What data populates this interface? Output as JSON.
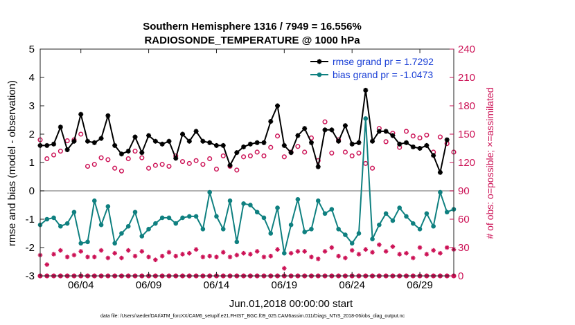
{
  "chart_data": {
    "type": "line",
    "title": [
      "Southern Hemisphere 1316 / 7949 = 16.556%",
      "RADIOSONDE_TEMPERATURE @ 1000 hPa"
    ],
    "xlabel": "Jun.01,2018 00:00:00 start",
    "ylabel": "rmse and bias (model - observation)",
    "ylabel_right": "# of obs: o=possible; ×=assimilated",
    "footnote": "data file: /Users/raeder/DAI/ATM_forcXX/CAM6_setup/f.e21.FHIST_BGC.f09_025.CAM6assim.011/Diags_NTrS_2018-06/obs_diag_output.nc",
    "xlim": [
      0,
      30.5
    ],
    "ylim": [
      -3,
      5
    ],
    "ylim_right": [
      0,
      240
    ],
    "x_ticks": [
      3,
      8,
      13,
      18,
      23,
      28
    ],
    "x_tick_labels": [
      "06/04",
      "06/09",
      "06/14",
      "06/19",
      "06/24",
      "06/29"
    ],
    "y_ticks": [
      -3,
      -2,
      -1,
      0,
      1,
      2,
      3,
      4,
      5
    ],
    "y_ticks_right": [
      0,
      30,
      60,
      90,
      120,
      150,
      180,
      210,
      240
    ],
    "zero_line": true,
    "legend_position": "top-right",
    "colors": {
      "rmse": "#000000",
      "bias": "#0f8080",
      "possible": "#cc1155",
      "assimilated": "#cc1155",
      "zero": "#999999"
    },
    "series": [
      {
        "name": "rmse grand pr = 1.7292",
        "axis": "left",
        "marker": "asterisk",
        "x": [
          0,
          0.5,
          1,
          1.5,
          2,
          2.5,
          3,
          3.5,
          4,
          4.5,
          5,
          5.5,
          6,
          6.5,
          7,
          7.5,
          8,
          8.5,
          9,
          9.5,
          10,
          10.5,
          11,
          11.5,
          12,
          12.5,
          13,
          13.5,
          14,
          14.5,
          15,
          15.5,
          16,
          16.5,
          17,
          17.5,
          18,
          18.5,
          19,
          19.5,
          20,
          20.5,
          21,
          21.5,
          22,
          22.5,
          23,
          23.5,
          24,
          24.5,
          25,
          25.5,
          26,
          26.5,
          27,
          27.5,
          28,
          28.5,
          29,
          29.5,
          30
        ],
        "values": [
          1.6,
          1.6,
          1.65,
          2.25,
          1.45,
          1.75,
          2.7,
          1.75,
          1.7,
          1.85,
          2.65,
          1.6,
          1.3,
          1.4,
          1.9,
          1.35,
          1.95,
          1.75,
          1.65,
          1.75,
          1.15,
          2.0,
          1.75,
          2.1,
          1.75,
          1.7,
          1.6,
          1.6,
          0.9,
          1.35,
          1.55,
          1.65,
          1.7,
          1.7,
          2.45,
          3.0,
          1.6,
          1.35,
          1.95,
          2.2,
          1.7,
          0.85,
          2.15,
          2.15,
          1.75,
          2.3,
          1.65,
          1.7,
          3.55,
          1.75,
          2.1,
          2.1,
          1.95,
          1.65,
          1.7,
          1.55,
          1.5,
          1.6,
          1.25,
          0.65,
          1.8
        ]
      },
      {
        "name": "bias grand pr = -1.0473",
        "axis": "left",
        "marker": "dot",
        "x": [
          0,
          0.5,
          1,
          1.5,
          2,
          2.5,
          3,
          3.5,
          4,
          4.5,
          5,
          5.5,
          6,
          6.5,
          7,
          7.5,
          8,
          8.5,
          9,
          9.5,
          10,
          10.5,
          11,
          11.5,
          12,
          12.5,
          13,
          13.5,
          14,
          14.5,
          15,
          15.5,
          16,
          16.5,
          17,
          17.5,
          18,
          18.5,
          19,
          19.5,
          20,
          20.5,
          21,
          21.5,
          22,
          22.5,
          23,
          23.5,
          24,
          24.5,
          25,
          25.5,
          26,
          26.5,
          27,
          27.5,
          28,
          28.5,
          29,
          29.5,
          30,
          30.5
        ],
        "values": [
          -1.2,
          -1.0,
          -0.95,
          -1.25,
          -1.15,
          -0.75,
          -1.85,
          -1.8,
          -0.35,
          -1.2,
          -0.55,
          -1.85,
          -1.5,
          -1.25,
          -0.75,
          -1.6,
          -1.35,
          -1.15,
          -0.95,
          -0.95,
          -1.15,
          -0.95,
          -0.9,
          -0.9,
          -1.35,
          -0.05,
          -0.9,
          -1.35,
          -0.35,
          -1.8,
          -0.45,
          -0.5,
          -0.75,
          -0.95,
          -1.5,
          -0.6,
          -2.2,
          -1.2,
          -0.3,
          -1.45,
          -1.35,
          -0.35,
          -0.8,
          -0.65,
          -1.35,
          -1.55,
          -1.85,
          -1.5,
          2.55,
          -1.7,
          -1.2,
          -0.8,
          -1.05,
          -0.6,
          -0.9,
          -1.15,
          -1.35,
          -0.8,
          -1.25,
          -0.05,
          -0.75,
          -0.65
        ]
      },
      {
        "name": "possible",
        "axis": "right",
        "marker": "circle",
        "x": [
          0,
          0.5,
          1,
          1.5,
          2,
          2.5,
          3,
          3.5,
          4,
          4.5,
          5,
          5.5,
          6,
          6.5,
          7,
          7.5,
          8,
          8.5,
          9,
          9.5,
          10,
          10.5,
          11,
          11.5,
          12,
          12.5,
          13,
          13.5,
          14,
          14.5,
          15,
          15.5,
          16,
          16.5,
          17,
          17.5,
          18,
          18.5,
          19,
          19.5,
          20,
          20.5,
          21,
          21.5,
          22,
          22.5,
          23,
          23.5,
          24,
          24.5,
          25,
          25.5,
          26,
          26.5,
          27,
          27.5,
          28,
          28.5,
          29,
          29.5,
          30,
          30.5
        ],
        "values": [
          144,
          124,
          128,
          132,
          143,
          144,
          150,
          116,
          118,
          125,
          123,
          114,
          111,
          124,
          132,
          125,
          114,
          117,
          118,
          116,
          127,
          121,
          119,
          122,
          118,
          124,
          113,
          127,
          116,
          112,
          126,
          127,
          131,
          127,
          136,
          148,
          126,
          131,
          137,
          131,
          146,
          122,
          163,
          130,
          144,
          131,
          127,
          130,
          119,
          114,
          156,
          142,
          151,
          136,
          153,
          148,
          146,
          149,
          131,
          147,
          140,
          131
        ]
      },
      {
        "name": "assimilated",
        "axis": "right",
        "marker": "asterisk",
        "x": [
          0,
          0.5,
          1,
          1.5,
          2,
          2.5,
          3,
          3.5,
          4,
          4.5,
          5,
          5.5,
          6,
          6.5,
          7,
          7.5,
          8,
          8.5,
          9,
          9.5,
          10,
          10.5,
          11,
          11.5,
          12,
          12.5,
          13,
          13.5,
          14,
          14.5,
          15,
          15.5,
          16,
          16.5,
          17,
          17.5,
          18,
          18.5,
          19,
          19.5,
          20,
          20.5,
          21,
          21.5,
          22,
          22.5,
          23,
          23.5,
          24,
          24.5,
          25,
          25.5,
          26,
          26.5,
          27,
          27.5,
          28,
          28.5,
          29,
          29.5,
          30,
          30.5
        ],
        "values": [
          22,
          12,
          23,
          27,
          20,
          22,
          26,
          20,
          20,
          27,
          19,
          24,
          19,
          27,
          21,
          26,
          20,
          17,
          21,
          25,
          21,
          23,
          24,
          28,
          20,
          21,
          20,
          25,
          20,
          22,
          24,
          23,
          26,
          20,
          21,
          28,
          8,
          24,
          26,
          26,
          20,
          18,
          26,
          30,
          21,
          19,
          27,
          23,
          28,
          25,
          33,
          26,
          31,
          23,
          24,
          19,
          30,
          23,
          27,
          24,
          30,
          28
        ]
      },
      {
        "name": "possible-zero",
        "axis": "right",
        "marker": "circle",
        "x": [
          0,
          0.5,
          1,
          1.5,
          2,
          2.5,
          3,
          3.5,
          4,
          4.5,
          5,
          5.5,
          6,
          6.5,
          7,
          7.5,
          8,
          8.5,
          9,
          9.5,
          10,
          10.5,
          11,
          11.5,
          12,
          12.5,
          13,
          13.5,
          14,
          14.5,
          15,
          15.5,
          16,
          16.5,
          17,
          17.5,
          18,
          18.5,
          19,
          19.5,
          20,
          20.5,
          21,
          21.5,
          22,
          22.5,
          23,
          23.5,
          24,
          24.5,
          25,
          25.5,
          26,
          26.5,
          27,
          27.5,
          28,
          28.5,
          29,
          29.5,
          30,
          30.5
        ],
        "values": [
          0,
          0,
          0,
          0,
          0,
          0,
          0,
          0,
          0,
          0,
          0,
          0,
          0,
          0,
          0,
          0,
          0,
          0,
          0,
          0,
          0,
          0,
          0,
          0,
          0,
          0,
          0,
          0,
          0,
          0,
          0,
          0,
          0,
          0,
          0,
          0,
          0,
          0,
          0,
          0,
          0,
          0,
          0,
          0,
          0,
          0,
          0,
          0,
          0,
          0,
          0,
          0,
          0,
          0,
          0,
          0,
          0,
          0,
          0,
          0,
          0,
          0
        ]
      },
      {
        "name": "assimilated-zero",
        "axis": "right",
        "marker": "asterisk",
        "x": [
          0,
          0.5,
          1,
          1.5,
          2,
          2.5,
          3,
          3.5,
          4,
          4.5,
          5,
          5.5,
          6,
          6.5,
          7,
          7.5,
          8,
          8.5,
          9,
          9.5,
          10,
          10.5,
          11,
          11.5,
          12,
          12.5,
          13,
          13.5,
          14,
          14.5,
          15,
          15.5,
          16,
          16.5,
          17,
          17.5,
          18,
          18.5,
          19,
          19.5,
          20,
          20.5,
          21,
          21.5,
          22,
          22.5,
          23,
          23.5,
          24,
          24.5,
          25,
          25.5,
          26,
          26.5,
          27,
          27.5,
          28,
          28.5,
          29,
          29.5,
          30,
          30.5
        ],
        "values": [
          0,
          0,
          0,
          0,
          0,
          0,
          0,
          0,
          0,
          0,
          0,
          0,
          0,
          0,
          0,
          0,
          0,
          0,
          0,
          0,
          0,
          0,
          0,
          0,
          0,
          0,
          0,
          0,
          0,
          0,
          0,
          0,
          0,
          0,
          0,
          0,
          0,
          0,
          0,
          0,
          0,
          0,
          0,
          0,
          0,
          0,
          0,
          0,
          0,
          0,
          0,
          0,
          0,
          0,
          0,
          0,
          0,
          0,
          0,
          0,
          0,
          0
        ]
      }
    ]
  }
}
